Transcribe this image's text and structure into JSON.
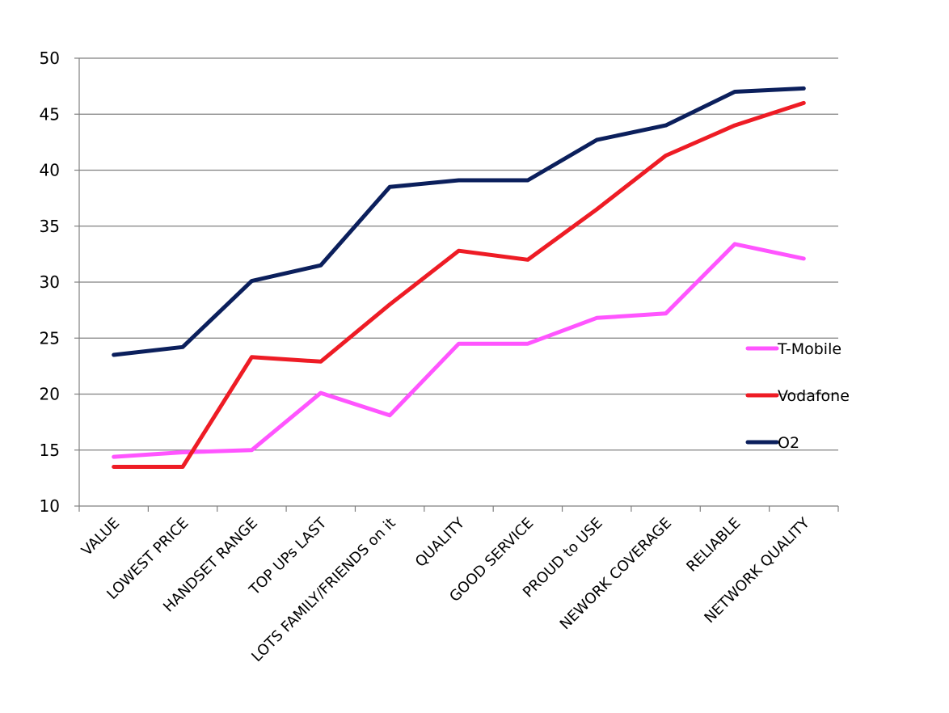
{
  "chart_data": {
    "type": "line",
    "title": "",
    "xlabel": "",
    "ylabel": "",
    "ylim": [
      10,
      50
    ],
    "yticks": [
      "10",
      "15",
      "20",
      "25",
      "30",
      "35",
      "40",
      "45",
      "50"
    ],
    "grid": true,
    "legend_position": "right",
    "categories": [
      "VALUE",
      "LOWEST PRICE",
      "HANDSET RANGE",
      "TOP UPs LAST",
      "LOTS FAMILY/FRIENDS on it",
      "QUALITY",
      "GOOD SERVICE",
      "PROUD to USE",
      "NEWORK COVERAGE",
      "RELIABLE",
      "NETWORK QUALITY"
    ],
    "series": [
      {
        "name": "T-Mobile",
        "color": "#ff55ff",
        "values": [
          14.4,
          14.8,
          15.0,
          20.1,
          18.1,
          24.5,
          24.5,
          26.8,
          27.2,
          33.4,
          32.1
        ]
      },
      {
        "name": "Vodafone",
        "color": "#ee1c25",
        "values": [
          13.5,
          13.5,
          23.3,
          22.9,
          28.0,
          32.8,
          32.0,
          36.5,
          41.3,
          44.0,
          46.0
        ]
      },
      {
        "name": "O2",
        "color": "#0b1f5c",
        "values": [
          23.5,
          24.2,
          30.1,
          31.5,
          38.5,
          39.1,
          39.1,
          42.7,
          44.0,
          47.0,
          47.3
        ]
      }
    ]
  }
}
